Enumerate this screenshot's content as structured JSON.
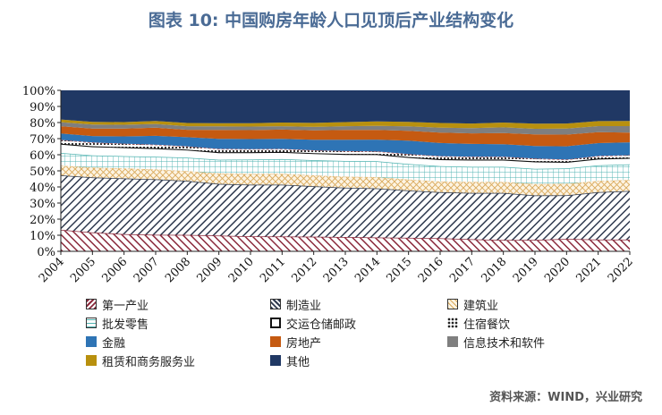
{
  "title": "图表 10: 中国购房年龄人口见顶后产业结构变化",
  "source": "资料来源：WIND，兴业研究",
  "chart_data": {
    "type": "area",
    "stacked": true,
    "x": [
      "2004",
      "2005",
      "2006",
      "2007",
      "2008",
      "2009",
      "2010",
      "2011",
      "2012",
      "2013",
      "2014",
      "2015",
      "2016",
      "2017",
      "2018",
      "2019",
      "2020",
      "2021",
      "2022"
    ],
    "yticks": [
      "0%",
      "10%",
      "20%",
      "30%",
      "40%",
      "50%",
      "60%",
      "70%",
      "80%",
      "90%",
      "100%"
    ],
    "ylim": [
      0,
      100
    ],
    "legend_position": "bottom",
    "series": [
      {
        "name": "第一产业",
        "color": "#8b2a3c",
        "pattern": "diag-left",
        "values": [
          13.4,
          11.7,
          10.7,
          10.3,
          10.2,
          9.8,
          9.3,
          9.2,
          9.1,
          8.9,
          8.6,
          8.4,
          8.1,
          7.5,
          7.0,
          7.1,
          7.7,
          7.3,
          7.3
        ]
      },
      {
        "name": "制造业",
        "color": "#2f3a4f",
        "pattern": "diag-right",
        "values": [
          33.8,
          34.2,
          34.6,
          34.4,
          33.6,
          32.1,
          32.1,
          32.2,
          31.3,
          30.6,
          30.5,
          29.4,
          28.6,
          28.8,
          29.2,
          27.6,
          27.1,
          29.4,
          30.2
        ]
      },
      {
        "name": "建筑业",
        "color": "#e8c48c",
        "pattern": "cross",
        "values": [
          6.1,
          6.2,
          6.2,
          6.2,
          6.1,
          6.5,
          6.7,
          6.8,
          6.8,
          6.9,
          7.0,
          6.8,
          6.7,
          6.8,
          6.9,
          7.1,
          7.2,
          7.0,
          6.9
        ]
      },
      {
        "name": "批发零售",
        "color": "#4fb3b0",
        "pattern": "grid",
        "values": [
          7.8,
          7.5,
          7.6,
          7.8,
          8.3,
          8.5,
          8.9,
          9.1,
          9.4,
          9.7,
          9.9,
          9.6,
          9.5,
          9.4,
          9.4,
          9.5,
          9.5,
          9.7,
          9.6
        ]
      },
      {
        "name": "交运仓储邮政",
        "color": "#333333",
        "pattern": "white",
        "values": [
          5.8,
          5.7,
          5.6,
          5.4,
          5.0,
          4.7,
          4.6,
          4.5,
          4.4,
          4.4,
          4.4,
          4.4,
          4.4,
          4.5,
          4.5,
          4.6,
          4.1,
          4.2,
          4.1
        ]
      },
      {
        "name": "住宿餐饮",
        "color": "#c46a6a",
        "pattern": "dots",
        "values": [
          2.3,
          2.3,
          2.2,
          2.1,
          2.0,
          2.0,
          1.9,
          1.8,
          1.8,
          1.8,
          1.7,
          1.8,
          1.8,
          1.8,
          1.8,
          1.7,
          1.4,
          1.6,
          1.6
        ]
      },
      {
        "name": "金融",
        "color": "#2e74b5",
        "pattern": "solid",
        "values": [
          4.0,
          4.0,
          4.5,
          5.5,
          5.7,
          6.3,
          6.2,
          6.3,
          6.5,
          7.0,
          7.3,
          8.4,
          8.2,
          7.9,
          7.7,
          7.8,
          8.2,
          8.0,
          8.0
        ]
      },
      {
        "name": "房地产",
        "color": "#c55a11",
        "pattern": "solid",
        "values": [
          4.5,
          4.6,
          4.8,
          5.1,
          4.6,
          5.5,
          5.6,
          5.7,
          5.8,
          6.1,
          6.0,
          6.1,
          6.5,
          6.6,
          7.0,
          7.2,
          7.3,
          6.8,
          6.1
        ]
      },
      {
        "name": "信息技术和软件",
        "color": "#7f7f7f",
        "pattern": "solid",
        "values": [
          2.5,
          2.5,
          2.4,
          2.3,
          2.2,
          2.2,
          2.2,
          2.1,
          2.2,
          2.3,
          2.5,
          2.7,
          3.0,
          3.2,
          3.5,
          3.5,
          3.8,
          3.8,
          4.0
        ]
      },
      {
        "name": "租赁和商务服务业",
        "color": "#b8900e",
        "pattern": "solid",
        "values": [
          1.7,
          1.7,
          1.7,
          1.9,
          2.0,
          2.0,
          2.1,
          2.3,
          2.5,
          2.6,
          2.8,
          2.8,
          2.9,
          2.9,
          3.0,
          3.2,
          3.1,
          3.1,
          3.2
        ]
      },
      {
        "name": "其他",
        "color": "#203864",
        "pattern": "solid",
        "values": [
          18.1,
          19.6,
          19.7,
          19.0,
          20.3,
          20.4,
          20.4,
          20.0,
          20.2,
          19.7,
          19.3,
          19.6,
          20.3,
          20.6,
          20.0,
          20.7,
          20.6,
          19.1,
          19.0
        ]
      }
    ]
  }
}
